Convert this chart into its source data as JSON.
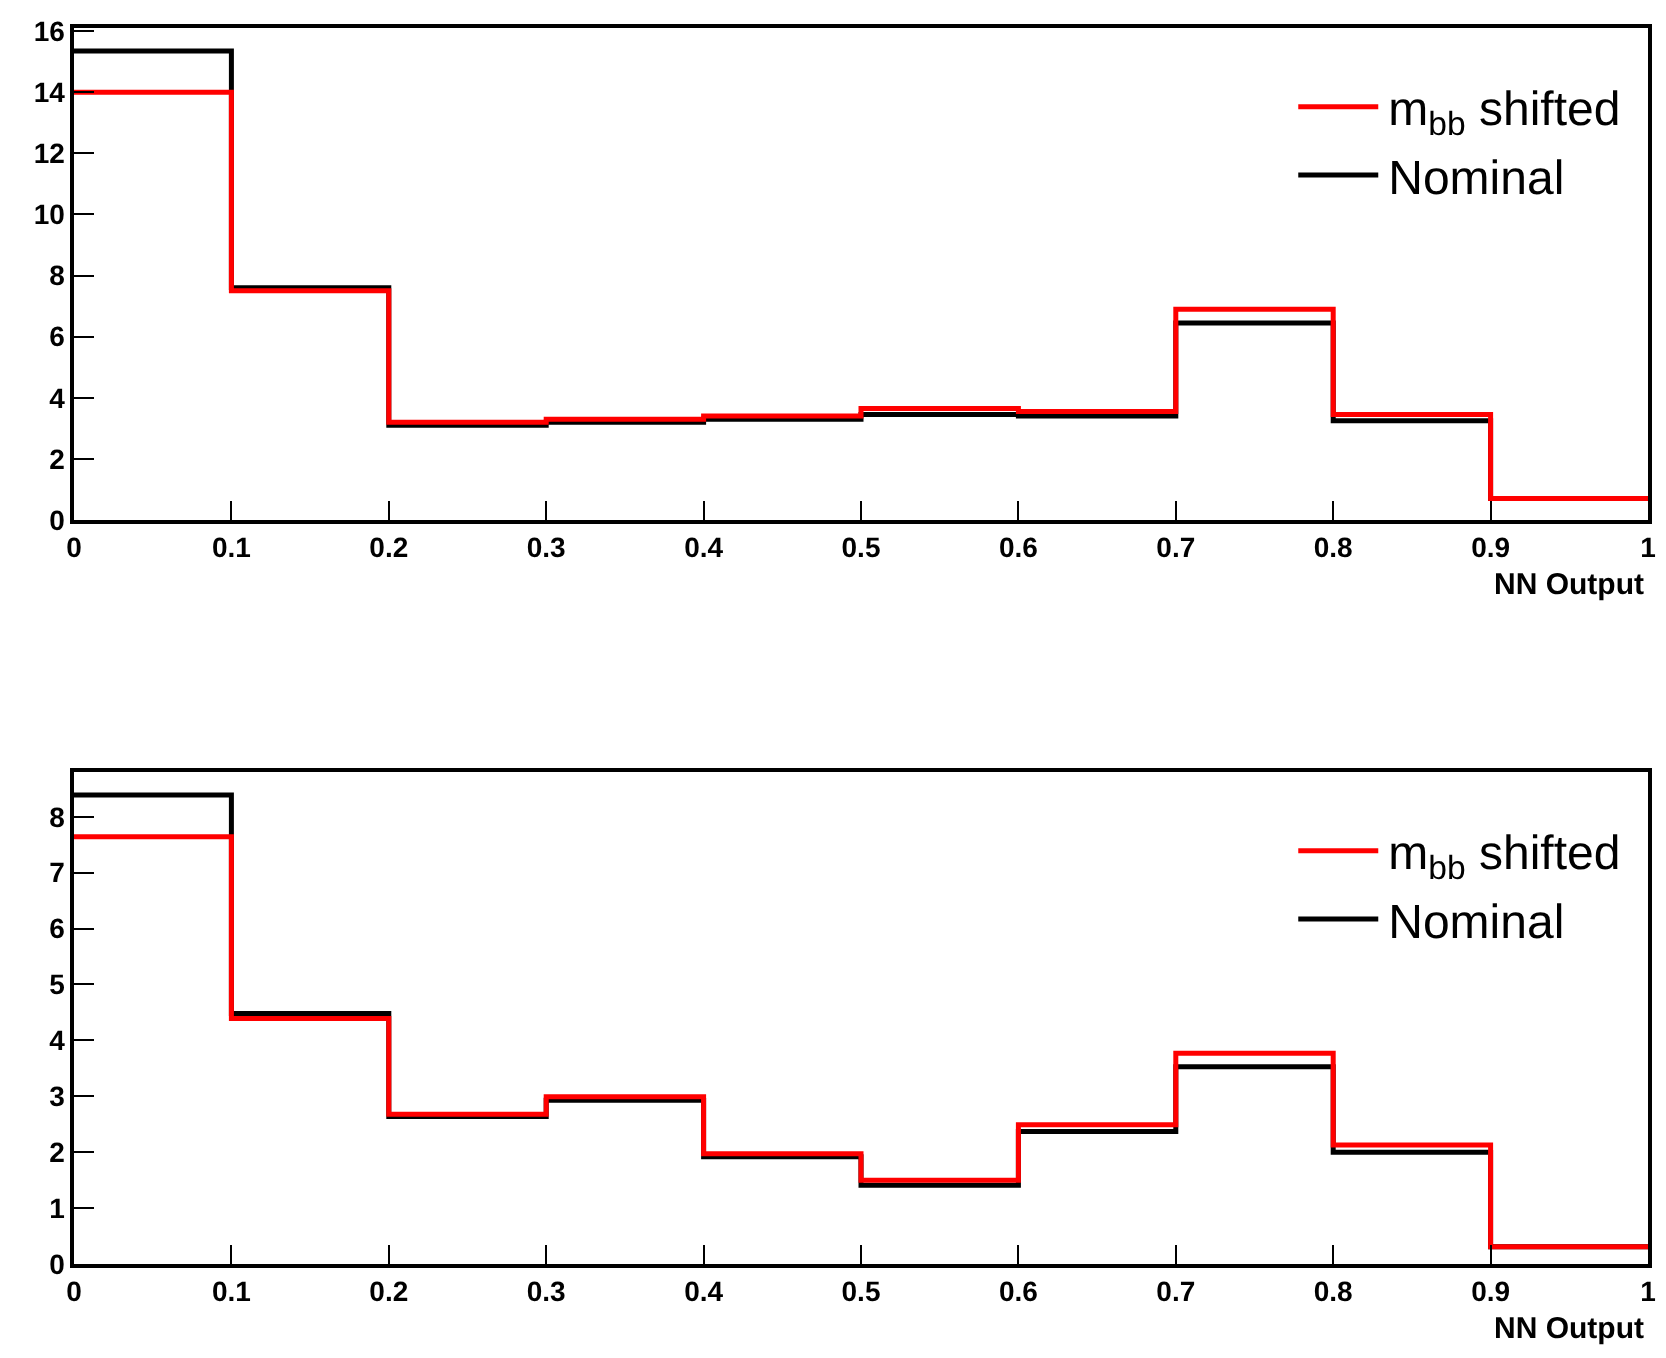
{
  "chart_data": [
    {
      "type": "histogram",
      "xlabel": "NN Output",
      "bins": [
        0,
        0.1,
        0.2,
        0.3,
        0.4,
        0.5,
        0.6,
        0.7,
        0.8,
        0.9,
        1.0
      ],
      "series": [
        {
          "name": "m$_{bb}$ shifted",
          "color": "#ff0000",
          "values": [
            14.0,
            7.5,
            3.2,
            3.3,
            3.4,
            3.65,
            3.55,
            6.9,
            3.45,
            0.7
          ]
        },
        {
          "name": "Nominal",
          "color": "#000000",
          "values": [
            15.35,
            7.6,
            3.1,
            3.2,
            3.3,
            3.45,
            3.4,
            6.45,
            3.25,
            0.7
          ]
        }
      ],
      "xlim": [
        0,
        1
      ],
      "xticks": [
        0,
        0.1,
        0.2,
        0.3,
        0.4,
        0.5,
        0.6,
        0.7,
        0.8,
        0.9,
        1
      ],
      "ylim": [
        0,
        16.1
      ],
      "yticks": [
        0,
        2,
        4,
        6,
        8,
        10,
        12,
        14,
        16
      ],
      "legend": "top right",
      "line_style": "solid"
    },
    {
      "type": "histogram",
      "xlabel": "NN Output",
      "bins": [
        0,
        0.1,
        0.2,
        0.3,
        0.4,
        0.5,
        0.6,
        0.7,
        0.8,
        0.9,
        1.0
      ],
      "series": [
        {
          "name": "m$_{bb}$ shifted",
          "color": "#ff0000",
          "values": [
            7.64,
            4.39,
            2.68,
            2.99,
            1.97,
            1.5,
            2.49,
            3.77,
            2.13,
            0.31
          ]
        },
        {
          "name": "Nominal",
          "color": "#000000",
          "values": [
            8.39,
            4.48,
            2.64,
            2.93,
            1.92,
            1.41,
            2.37,
            3.53,
            2.0,
            0.31
          ]
        }
      ],
      "xlim": [
        0,
        1
      ],
      "xticks": [
        0,
        0.1,
        0.2,
        0.3,
        0.4,
        0.5,
        0.6,
        0.7,
        0.8,
        0.9,
        1
      ],
      "ylim": [
        0,
        8.8
      ],
      "yticks": [
        0,
        1,
        2,
        3,
        4,
        5,
        6,
        7,
        8
      ],
      "legend": "top right",
      "line_style": "solid"
    }
  ]
}
